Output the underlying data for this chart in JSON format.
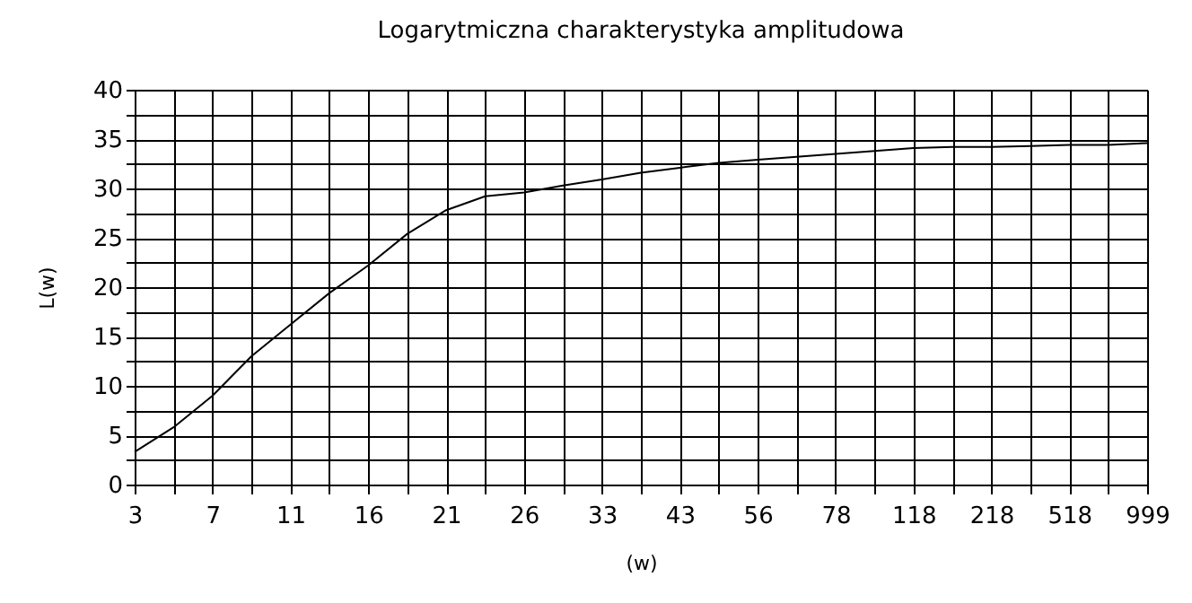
{
  "chart_data": {
    "type": "line",
    "title": "Logarytmiczna charakterystyka amplitudowa",
    "xlabel": "(w)",
    "ylabel": "L(w)",
    "categories": [
      "3",
      null,
      "7",
      null,
      "11",
      null,
      "16",
      null,
      "21",
      null,
      "26",
      null,
      "33",
      null,
      "43",
      null,
      "56",
      null,
      "78",
      null,
      "118",
      null,
      "218",
      null,
      "518",
      null,
      "999"
    ],
    "series": [
      {
        "color": "#000000",
        "values": [
          3.3,
          5.8,
          9.0,
          13.0,
          16.2,
          19.4,
          22.2,
          25.4,
          27.8,
          29.2,
          29.6,
          30.3,
          30.9,
          31.6,
          32.1,
          32.6,
          32.9,
          33.2,
          33.5,
          33.8,
          34.1,
          34.2,
          34.2,
          34.3,
          34.4,
          34.4,
          34.6
        ]
      }
    ],
    "ylim": [
      0,
      40
    ],
    "yticks": [
      0,
      {
        "value": 2.5,
        "label": null
      },
      5,
      {
        "value": 7.5,
        "label": null
      },
      10,
      {
        "value": 12.5,
        "label": null
      },
      15,
      {
        "value": 17.5,
        "label": null
      },
      20,
      {
        "value": 22.5,
        "label": null
      },
      25,
      {
        "value": 27.5,
        "label": null
      },
      30,
      {
        "value": 32.5,
        "label": null
      },
      35,
      {
        "value": 37.5,
        "label": null
      },
      40
    ],
    "grid": true,
    "legend": false,
    "marker": "none",
    "line_style": "solid"
  }
}
